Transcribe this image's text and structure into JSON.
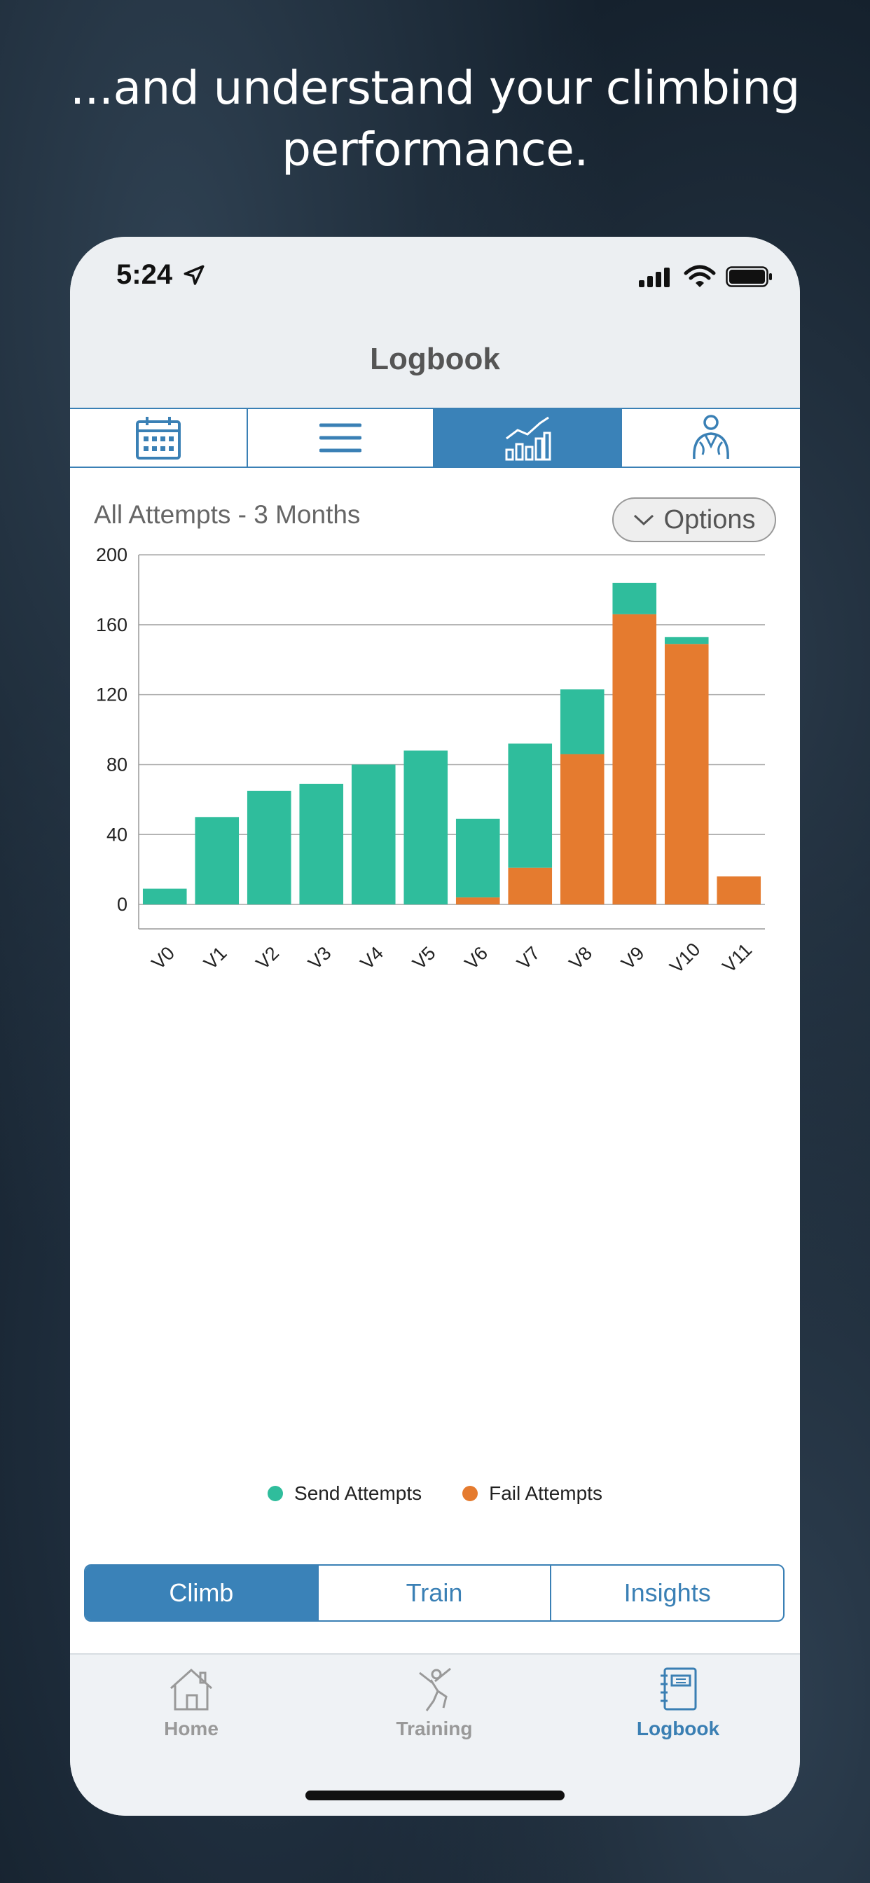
{
  "headline": {
    "line1": "...and understand your climbing",
    "line2": "performance."
  },
  "status_bar": {
    "time": "5:24"
  },
  "nav": {
    "title": "Logbook"
  },
  "top_segments": [
    {
      "icon": "calendar-icon",
      "active": false
    },
    {
      "icon": "list-icon",
      "active": false
    },
    {
      "icon": "chart-icon",
      "active": true
    },
    {
      "icon": "climber-profile-icon",
      "active": false
    }
  ],
  "chart_header": {
    "title": "All Attempts - 3 Months",
    "options_label": "Options"
  },
  "colors": {
    "send": "#2fbd9c",
    "fail": "#e57b2f",
    "accent": "#3a82b8"
  },
  "chart_data": {
    "type": "bar",
    "stacked": true,
    "categories": [
      "V0",
      "V1",
      "V2",
      "V3",
      "V4",
      "V5",
      "V6",
      "V7",
      "V8",
      "V9",
      "V10",
      "V11"
    ],
    "series": [
      {
        "name": "Fail Attempts",
        "color": "#e57b2f",
        "values": [
          0,
          0,
          0,
          0,
          0,
          0,
          4,
          21,
          86,
          166,
          149,
          16
        ]
      },
      {
        "name": "Send Attempts",
        "color": "#2fbd9c",
        "values": [
          9,
          50,
          65,
          69,
          80,
          88,
          45,
          71,
          37,
          18,
          4,
          0
        ]
      }
    ],
    "ylim": [
      -14,
      200
    ],
    "yticks": [
      0,
      40,
      80,
      120,
      160,
      200
    ],
    "grid": true,
    "legend_position": "bottom"
  },
  "legend": {
    "send_label": "Send Attempts",
    "fail_label": "Fail Attempts"
  },
  "bottom_segments": [
    "Climb",
    "Train",
    "Insights"
  ],
  "tabs": [
    {
      "label": "Home",
      "icon": "home-icon"
    },
    {
      "label": "Training",
      "icon": "climber-icon"
    },
    {
      "label": "Logbook",
      "icon": "logbook-icon"
    }
  ]
}
